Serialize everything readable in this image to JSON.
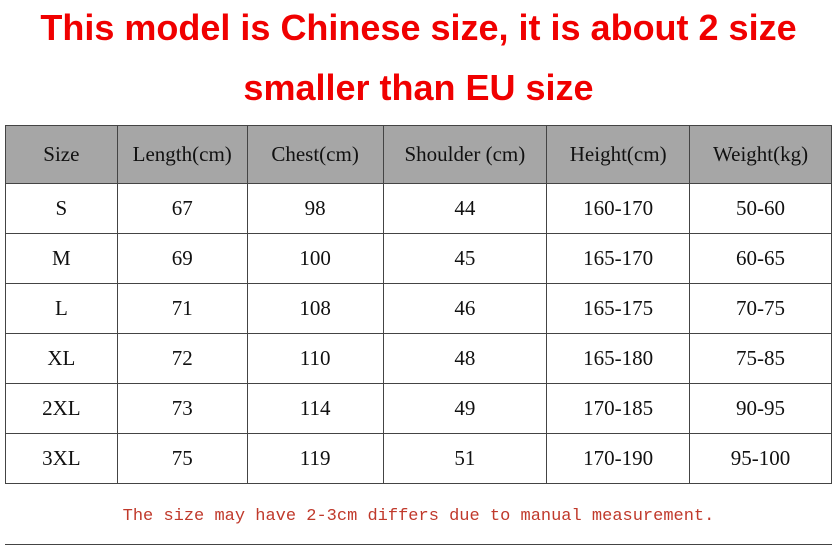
{
  "header": {
    "title_lines": [
      "This model is Chinese size, it is about 2 size",
      "smaller than EU size"
    ]
  },
  "table": {
    "columns": [
      "Size",
      "Length(cm)",
      "Chest(cm)",
      "Shoulder (cm)",
      "Height(cm)",
      "Weight(kg)"
    ],
    "rows": [
      [
        "S",
        67,
        98,
        44,
        "160-170",
        "50-60"
      ],
      [
        "M",
        69,
        100,
        45,
        "165-170",
        "60-65"
      ],
      [
        "L",
        71,
        108,
        46,
        "165-175",
        "70-75"
      ],
      [
        "XL",
        72,
        110,
        48,
        "165-180",
        "75-85"
      ],
      [
        "2XL",
        73,
        114,
        49,
        "170-185",
        "90-95"
      ],
      [
        "3XL",
        75,
        119,
        51,
        "170-190",
        "95-100"
      ]
    ],
    "note": "The size may have 2-3cm differs due to manual measurement."
  }
}
